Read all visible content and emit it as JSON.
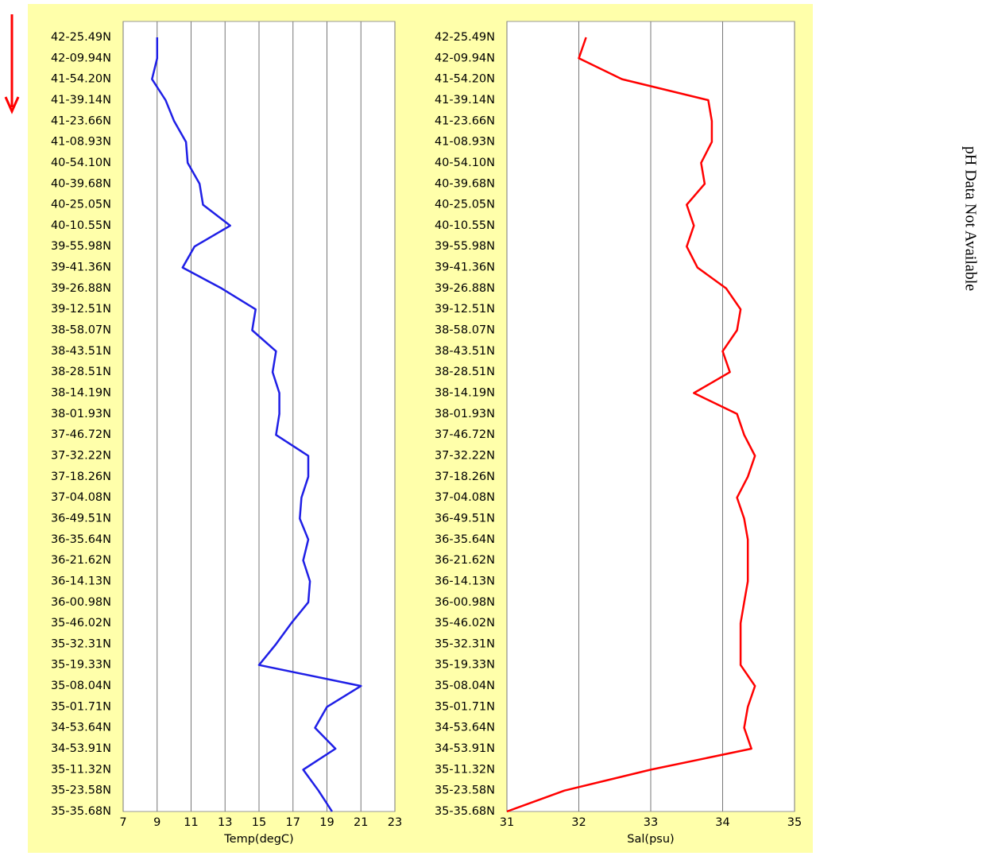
{
  "chart_data": [
    {
      "type": "line",
      "xlabel": "Temp(degC)",
      "color": "#1f1fe6",
      "categories": [
        "42-25.49N",
        "42-09.94N",
        "41-54.20N",
        "41-39.14N",
        "41-23.66N",
        "41-08.93N",
        "40-54.10N",
        "40-39.68N",
        "40-25.05N",
        "40-10.55N",
        "39-55.98N",
        "39-41.36N",
        "39-26.88N",
        "39-12.51N",
        "38-58.07N",
        "38-43.51N",
        "38-28.51N",
        "38-14.19N",
        "38-01.93N",
        "37-46.72N",
        "37-32.22N",
        "37-18.26N",
        "37-04.08N",
        "36-49.51N",
        "36-35.64N",
        "36-21.62N",
        "36-14.13N",
        "36-00.98N",
        "35-46.02N",
        "35-32.31N",
        "35-19.33N",
        "35-08.04N",
        "35-01.71N",
        "34-53.64N",
        "34-53.91N",
        "35-11.32N",
        "35-23.58N",
        "35-35.68N"
      ],
      "values": [
        9.0,
        9.0,
        8.7,
        9.5,
        10.0,
        10.7,
        10.8,
        11.5,
        11.7,
        13.3,
        11.2,
        10.5,
        12.8,
        14.8,
        14.6,
        16.0,
        15.8,
        16.2,
        16.2,
        16.0,
        17.9,
        17.9,
        17.5,
        17.4,
        17.9,
        17.6,
        18.0,
        17.9,
        16.9,
        16.0,
        15.0,
        21.0,
        19.0,
        18.3,
        19.5,
        17.6,
        18.5,
        19.3
      ],
      "xlim": [
        7,
        23
      ],
      "xticks": [
        7,
        9,
        11,
        13,
        15,
        17,
        19,
        21,
        23
      ],
      "grid": true
    },
    {
      "type": "line",
      "xlabel": "Sal(psu)",
      "color": "#ff0000",
      "categories": [
        "42-25.49N",
        "42-09.94N",
        "41-54.20N",
        "41-39.14N",
        "41-23.66N",
        "41-08.93N",
        "40-54.10N",
        "40-39.68N",
        "40-25.05N",
        "40-10.55N",
        "39-55.98N",
        "39-41.36N",
        "39-26.88N",
        "39-12.51N",
        "38-58.07N",
        "38-43.51N",
        "38-28.51N",
        "38-14.19N",
        "38-01.93N",
        "37-46.72N",
        "37-32.22N",
        "37-18.26N",
        "37-04.08N",
        "36-49.51N",
        "36-35.64N",
        "36-21.62N",
        "36-14.13N",
        "36-00.98N",
        "35-46.02N",
        "35-32.31N",
        "35-19.33N",
        "35-08.04N",
        "35-01.71N",
        "34-53.64N",
        "34-53.91N",
        "35-11.32N",
        "35-23.58N",
        "35-35.68N"
      ],
      "values": [
        32.1,
        32.0,
        32.6,
        33.8,
        33.85,
        33.85,
        33.7,
        33.75,
        33.5,
        33.6,
        33.5,
        33.65,
        34.05,
        34.25,
        34.2,
        34.0,
        34.1,
        33.6,
        34.2,
        34.3,
        34.45,
        34.35,
        34.2,
        34.3,
        34.35,
        34.35,
        34.35,
        34.3,
        34.25,
        34.25,
        34.25,
        34.45,
        34.35,
        34.3,
        34.4,
        33.0,
        31.8,
        31.0
      ],
      "xlim": [
        31,
        35
      ],
      "xticks": [
        31,
        32,
        33,
        34,
        35
      ],
      "grid": true
    }
  ],
  "annotation": "pH Data Not Available"
}
